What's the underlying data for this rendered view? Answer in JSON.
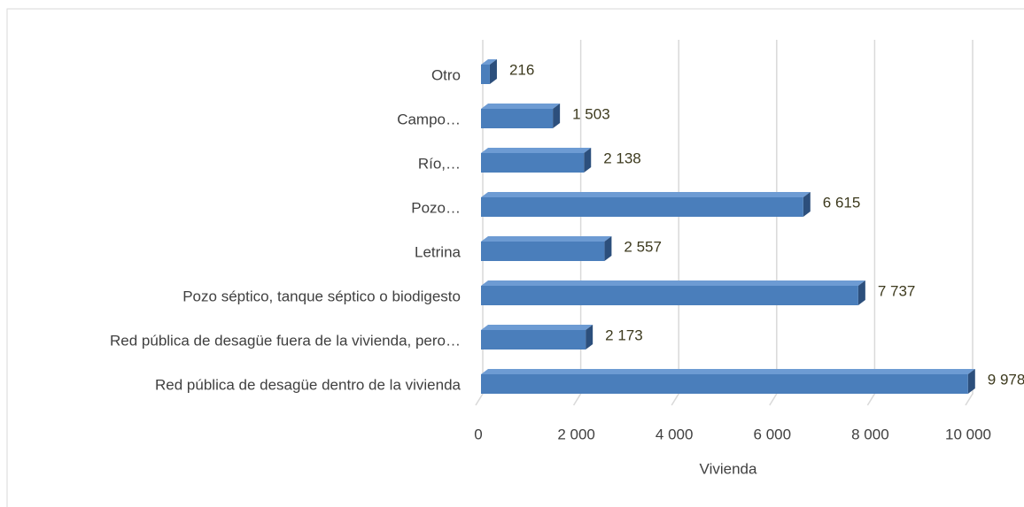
{
  "chart_data": {
    "type": "bar",
    "orientation": "horizontal",
    "x_label": "Vivienda",
    "categories": [
      "Otro",
      "Campo…",
      "Río,…",
      "Pozo…",
      "Letrina",
      "Pozo séptico, tanque séptico o biodigesto",
      "Red pública de desagüe fuera de la vivienda, pero…",
      "Red pública de desagüe dentro de la vivienda"
    ],
    "values": [
      216,
      1503,
      2138,
      6615,
      2557,
      7737,
      2173,
      9978
    ],
    "value_labels": [
      "216",
      "1 503",
      "2 138",
      "6 615",
      "2 557",
      "7 737",
      "2 173",
      "9 978"
    ],
    "color": "#4a7ebb",
    "xlim": [
      0,
      10000
    ],
    "xticks": [
      0,
      {
        "value": 2000,
        "label": "2 000"
      },
      {
        "value": 4000,
        "label": "4 000"
      },
      {
        "value": 6000,
        "label": "6 000"
      },
      {
        "value": 8000,
        "label": "8 000"
      },
      {
        "value": 10000,
        "label": "10 000"
      }
    ],
    "grid": true
  }
}
